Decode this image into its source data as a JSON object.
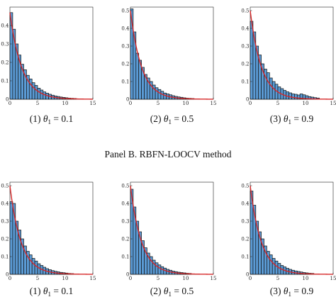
{
  "panel_b_title": "Panel B. RBFN-LOOCV method",
  "colors": {
    "bar_fill": "#5b9bd5",
    "bar_edge": "#111111",
    "curve": "#d62728"
  },
  "chart_data": [
    {
      "type": "bar",
      "row": 1,
      "col": 1,
      "caption": {
        "num": "(1)",
        "theta": "θ",
        "sub": "1",
        "value": "= 0.1"
      },
      "xlim": [
        0,
        15
      ],
      "ylim": [
        0,
        0.5
      ],
      "xticks": [
        "0",
        "5",
        "10",
        "15"
      ],
      "yticks": [
        "0",
        "0.1",
        "0.2",
        "0.3",
        "0.4"
      ],
      "bin_width": 0.5,
      "values": [
        0.47,
        0.38,
        0.3,
        0.24,
        0.19,
        0.16,
        0.13,
        0.11,
        0.09,
        0.075,
        0.06,
        0.05,
        0.04,
        0.033,
        0.027,
        0.022,
        0.018,
        0.015,
        0.012,
        0.01,
        0.008,
        0.006,
        0.005,
        0.004
      ],
      "density_rate": 0.47
    },
    {
      "type": "bar",
      "row": 1,
      "col": 2,
      "caption": {
        "num": "(2)",
        "theta": "θ",
        "sub": "1",
        "value": "= 0.5"
      },
      "xlim": [
        0,
        15
      ],
      "ylim": [
        0,
        0.52
      ],
      "xticks": [
        "0",
        "5",
        "10",
        "15"
      ],
      "yticks": [
        "0",
        "0.1",
        "0.2",
        "0.3",
        "0.4",
        "0.5"
      ],
      "bin_width": 0.5,
      "values": [
        0.51,
        0.38,
        0.26,
        0.22,
        0.18,
        0.14,
        0.12,
        0.1,
        0.08,
        0.065,
        0.055,
        0.045,
        0.035,
        0.03,
        0.025,
        0.02,
        0.016,
        0.013,
        0.011,
        0.008,
        0.006,
        0.005,
        0.004
      ],
      "density_rate": 0.5
    },
    {
      "type": "bar",
      "row": 1,
      "col": 3,
      "caption": {
        "num": "(3)",
        "theta": "θ",
        "sub": "1",
        "value": "= 0.9"
      },
      "xlim": [
        0,
        15
      ],
      "ylim": [
        0,
        0.52
      ],
      "xticks": [
        "0",
        "5",
        "10",
        "15"
      ],
      "yticks": [
        "0",
        "0.1",
        "0.2",
        "0.3",
        "0.4",
        "0.5"
      ],
      "bin_width": 0.5,
      "values": [
        0.44,
        0.38,
        0.3,
        0.25,
        0.2,
        0.17,
        0.15,
        0.12,
        0.1,
        0.085,
        0.07,
        0.06,
        0.05,
        0.042,
        0.036,
        0.03,
        0.028,
        0.024,
        0.03,
        0.025,
        0.02,
        0.015,
        0.012,
        0.009,
        0.007
      ],
      "density_rate": 0.5
    },
    {
      "type": "bar",
      "row": 2,
      "col": 1,
      "caption": {
        "num": "(1)",
        "theta": "θ",
        "sub": "1",
        "value": "= 0.1"
      },
      "xlim": [
        0,
        15
      ],
      "ylim": [
        0,
        0.52
      ],
      "xticks": [
        "0",
        "5",
        "10",
        "15"
      ],
      "yticks": [
        "0",
        "0.1",
        "0.2",
        "0.3",
        "0.4",
        "0.5"
      ],
      "bin_width": 0.5,
      "values": [
        0.41,
        0.4,
        0.3,
        0.25,
        0.2,
        0.16,
        0.13,
        0.11,
        0.09,
        0.075,
        0.06,
        0.05,
        0.04,
        0.032,
        0.026,
        0.021,
        0.017,
        0.014,
        0.011,
        0.009,
        0.007,
        0.005,
        0.004
      ],
      "density_rate": 0.5
    },
    {
      "type": "bar",
      "row": 2,
      "col": 2,
      "caption": {
        "num": "(2)",
        "theta": "θ",
        "sub": "1",
        "value": "= 0.5"
      },
      "xlim": [
        0,
        15
      ],
      "ylim": [
        0,
        0.52
      ],
      "xticks": [
        "0",
        "5",
        "10",
        "15"
      ],
      "yticks": [
        "0",
        "0.1",
        "0.2",
        "0.3",
        "0.4",
        "0.5"
      ],
      "bin_width": 0.5,
      "values": [
        0.48,
        0.38,
        0.3,
        0.24,
        0.19,
        0.15,
        0.12,
        0.1,
        0.08,
        0.065,
        0.053,
        0.043,
        0.035,
        0.028,
        0.023,
        0.018,
        0.015,
        0.012,
        0.01,
        0.008,
        0.006,
        0.005
      ],
      "density_rate": 0.5
    },
    {
      "type": "bar",
      "row": 2,
      "col": 3,
      "caption": {
        "num": "(3)",
        "theta": "θ",
        "sub": "1",
        "value": "= 0.9"
      },
      "xlim": [
        0,
        15
      ],
      "ylim": [
        0,
        0.52
      ],
      "xticks": [
        "0",
        "5",
        "10",
        "15"
      ],
      "yticks": [
        "0",
        "0.1",
        "0.2",
        "0.3",
        "0.4",
        "0.5"
      ],
      "bin_width": 0.5,
      "values": [
        0.47,
        0.39,
        0.3,
        0.24,
        0.2,
        0.16,
        0.13,
        0.11,
        0.09,
        0.075,
        0.062,
        0.05,
        0.042,
        0.034,
        0.028,
        0.023,
        0.019,
        0.016,
        0.013,
        0.01,
        0.008,
        0.006,
        0.005
      ],
      "density_rate": 0.5
    }
  ]
}
